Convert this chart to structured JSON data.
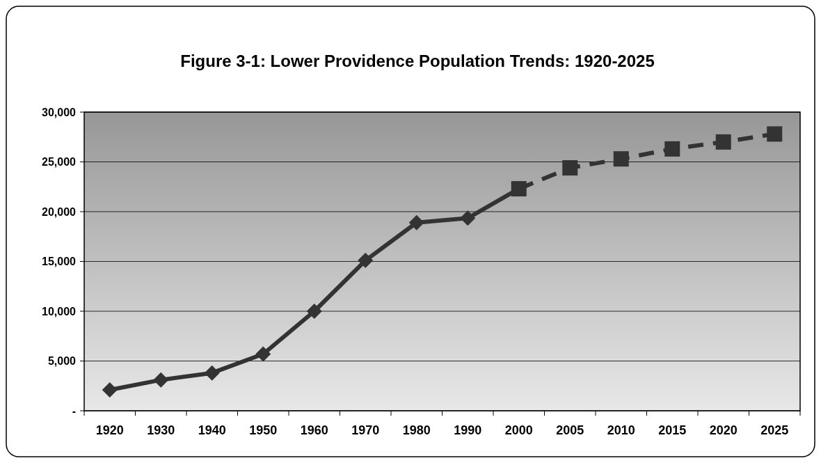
{
  "chart_data": {
    "type": "line",
    "title": "Figure 3-1: Lower Providence Population Trends: 1920-2025",
    "categories": [
      "1920",
      "1930",
      "1940",
      "1950",
      "1960",
      "1970",
      "1980",
      "1990",
      "2000",
      "2005",
      "2010",
      "2015",
      "2020",
      "2025"
    ],
    "series": [
      {
        "color": "#333333",
        "marker": "diamond",
        "line_style": "solid",
        "values": [
          2100,
          3100,
          3800,
          5700,
          10000,
          15100,
          18900,
          19350,
          22300,
          null,
          null,
          null,
          null,
          null
        ]
      },
      {
        "color": "#333333",
        "marker": "square",
        "line_style": "dashed",
        "values": [
          null,
          null,
          null,
          null,
          null,
          null,
          null,
          null,
          22300,
          24400,
          25300,
          26300,
          27000,
          27800
        ]
      }
    ],
    "ylim": [
      0,
      30000
    ],
    "yticks": [
      {
        "value": 0,
        "label": "-"
      },
      {
        "value": 5000,
        "label": "5,000"
      },
      {
        "value": 10000,
        "label": "10,000"
      },
      {
        "value": 15000,
        "label": "15,000"
      },
      {
        "value": 20000,
        "label": "20,000"
      },
      {
        "value": 25000,
        "label": "25,000"
      },
      {
        "value": 30000,
        "label": "30,000"
      }
    ],
    "grid": "y"
  }
}
